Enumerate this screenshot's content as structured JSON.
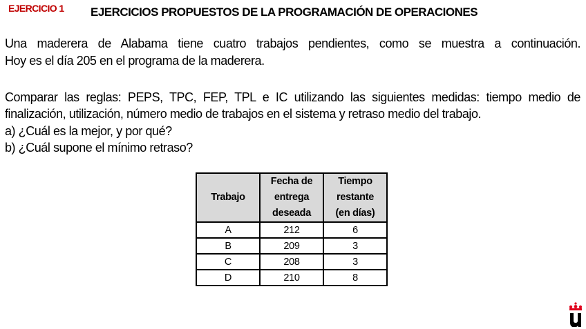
{
  "header": {
    "exercise_label": "EJERCICIO 1",
    "title": "EJERCICIOS PROPUESTOS DE LA PROGRAMACIÓN DE OPERACIONES"
  },
  "body": {
    "p1_line1": "Una maderera de Alabama tiene cuatro trabajos pendientes, como se muestra a continuación.",
    "p1_line2": "Hoy es el día 205 en el programa de la maderera.",
    "p2_line1": "Comparar las reglas: PEPS, TPC, FEP, TPL e IC  utilizando las siguientes medidas: tiempo medio de",
    "p2_line2": "finalización, utilización, número medio de trabajos en el sistema y retraso medio del trabajo.",
    "q_a": "a)   ¿Cuál es la mejor, y por qué?",
    "q_b": "b)   ¿Cuál supone el mínimo retraso?"
  },
  "table": {
    "headers": [
      "Trabajo",
      "Fecha de entrega deseada",
      "Tiempo restante (en días)"
    ],
    "header_lines": [
      [
        "Trabajo"
      ],
      [
        "Fecha de",
        "entrega",
        "deseada"
      ],
      [
        "Tiempo",
        "restante",
        "(en días)"
      ]
    ],
    "rows": [
      [
        "A",
        "212",
        "6"
      ],
      [
        "B",
        "209",
        "3"
      ],
      [
        "C",
        "208",
        "3"
      ],
      [
        "D",
        "210",
        "8"
      ]
    ]
  },
  "logo": {
    "text": "U",
    "crown_color": "#e0001b"
  }
}
